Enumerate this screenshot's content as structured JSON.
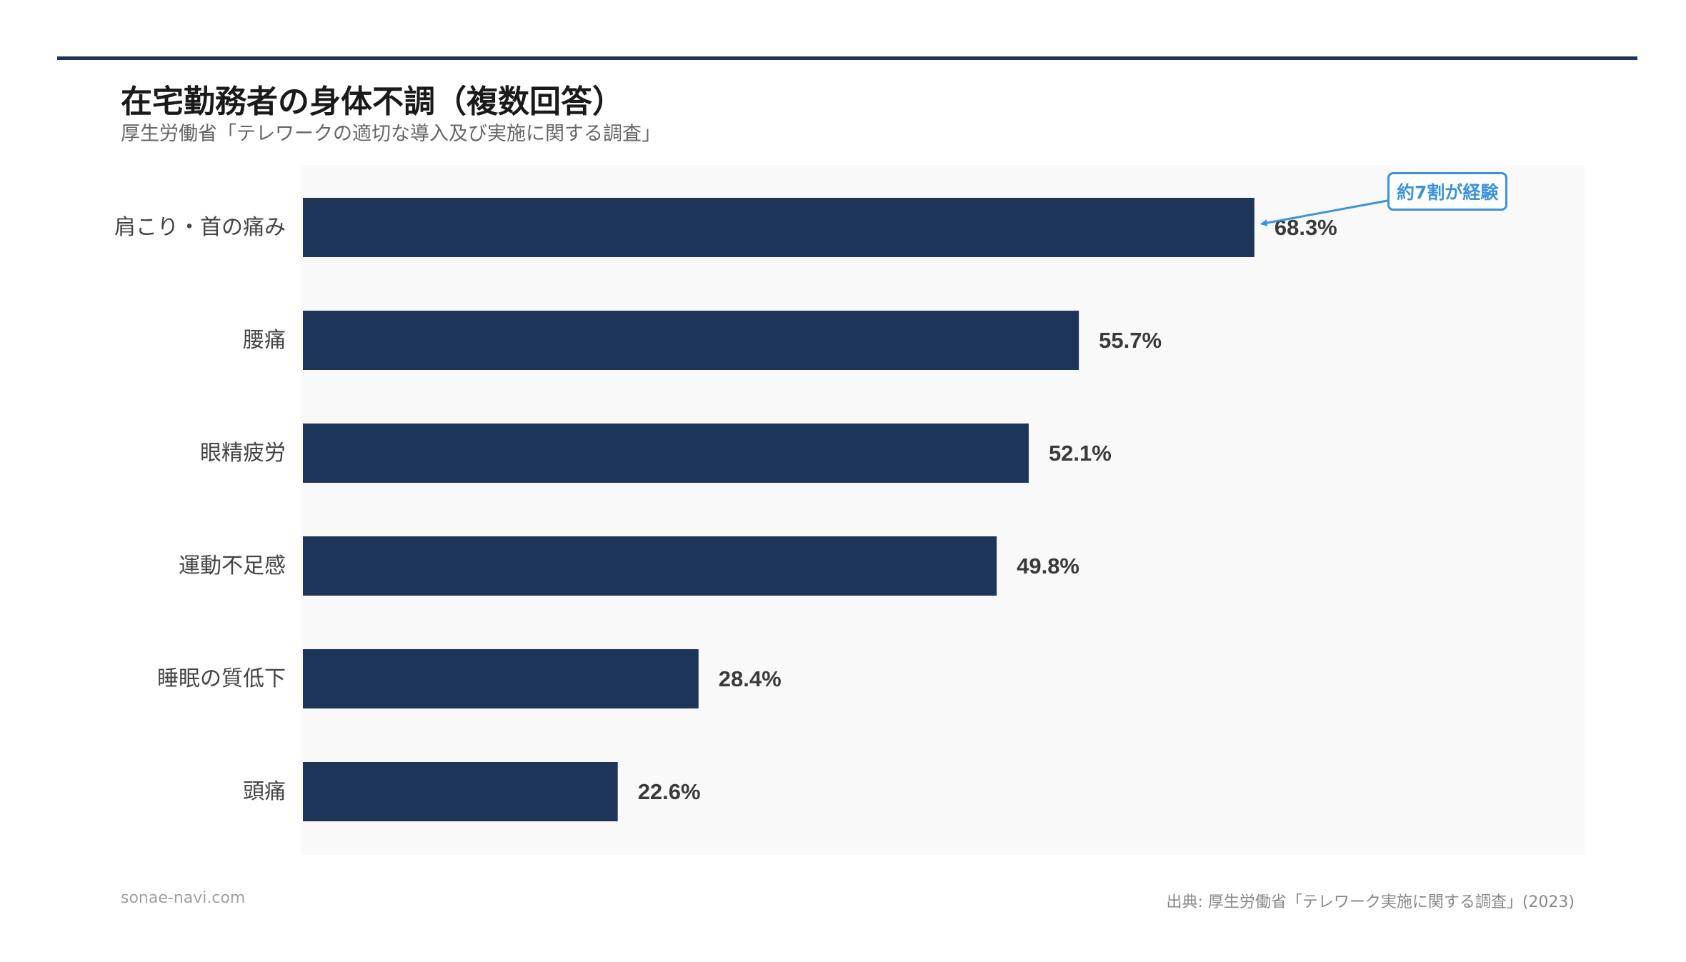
{
  "header": {
    "title": "在宅勤務者の身体不調（複数回答）",
    "subtitle": "厚生労働省「テレワークの適切な導入及び実施に関する調査」"
  },
  "chart_data": {
    "type": "bar",
    "orientation": "horizontal",
    "categories": [
      "肩こり・首の痛み",
      "腰痛",
      "眼精疲労",
      "運動不足感",
      "睡眠の質低下",
      "頭痛"
    ],
    "values": [
      68.3,
      55.7,
      52.1,
      49.8,
      28.4,
      22.6
    ],
    "value_labels": [
      "68.3%",
      "55.7%",
      "52.1%",
      "49.8%",
      "28.4%",
      "22.6%"
    ],
    "unit": "%",
    "xlim": [
      0,
      92
    ],
    "grid": false,
    "bar_color": "#1c3559",
    "annotation": {
      "text": "約7割が経験",
      "target_category": "肩こり・首の痛み",
      "color": "#3b93db"
    }
  },
  "footer": {
    "site": "sonae-navi.com",
    "source": "出典: 厚生労働省「テレワーク実施に関する調査」(2023)"
  }
}
